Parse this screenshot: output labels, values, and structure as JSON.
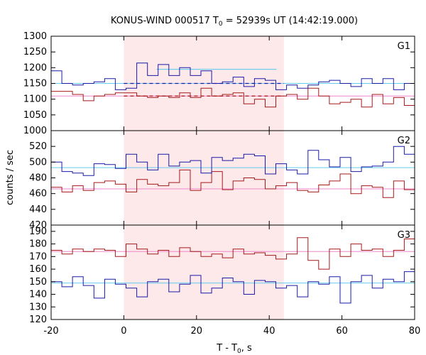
{
  "chart_data": {
    "type": "line",
    "title": "KONUS-WIND 000517 T₀ = 52939s UT (14:42:19.000)",
    "title_parts": {
      "prefix": "KONUS-WIND 000517 T",
      "sub": "0",
      "suffix": " = 52939s UT (14:42:19.000)"
    },
    "xlabel": "T - T₀, s",
    "xlabel_parts": {
      "prefix": "T - T",
      "sub": "0",
      "suffix": ", s"
    },
    "ylabel": "counts / sec",
    "xlim": [
      -20,
      80
    ],
    "x_ticks": [
      -20,
      0,
      20,
      40,
      60,
      80
    ],
    "grid": false,
    "colors": {
      "series_blue": "#1a1aa6",
      "series_red": "#a61a1a",
      "background_blue": "#66ccee",
      "background_red": "#ee88cc",
      "interval_fill": "#fde8ea"
    },
    "highlight_interval": [
      0,
      44.032
    ],
    "bin_width": 2.944,
    "bin_start": -20,
    "panels": [
      {
        "label": "G1",
        "ylim": [
          1000,
          1300
        ],
        "y_ticks": [
          1000,
          1050,
          1100,
          1150,
          1200,
          1250,
          1300
        ],
        "blue": [
          1190,
          1150,
          1145,
          1150,
          1155,
          1165,
          1130,
          1135,
          1215,
          1175,
          1210,
          1175,
          1200,
          1175,
          1190,
          1150,
          1155,
          1170,
          1140,
          1165,
          1160,
          1130,
          1145,
          1135,
          1145,
          1155,
          1160,
          1150,
          1140,
          1165,
          1150,
          1165,
          1130,
          1150
        ],
        "red": [
          1125,
          1125,
          1115,
          1095,
          1110,
          1115,
          1120,
          1120,
          1110,
          1105,
          1110,
          1105,
          1120,
          1105,
          1135,
          1110,
          1115,
          1120,
          1085,
          1100,
          1075,
          1110,
          1115,
          1100,
          1135,
          1110,
          1085,
          1090,
          1100,
          1075,
          1115,
          1085,
          1105,
          1080
        ],
        "blue_background": 1150,
        "red_background": 1110,
        "blue_interval_level": 1195,
        "red_interval_level": 1110
      },
      {
        "label": "G2",
        "ylim": [
          420,
          540
        ],
        "y_ticks": [
          420,
          440,
          460,
          480,
          500,
          520
        ],
        "blue": [
          500,
          488,
          486,
          483,
          498,
          497,
          492,
          510,
          500,
          490,
          510,
          495,
          500,
          502,
          486,
          506,
          502,
          505,
          510,
          508,
          485,
          498,
          490,
          485,
          515,
          503,
          494,
          506,
          488,
          494,
          495,
          500,
          520,
          510
        ],
        "red": [
          468,
          462,
          470,
          464,
          474,
          476,
          472,
          462,
          478,
          472,
          470,
          474,
          490,
          464,
          474,
          488,
          465,
          476,
          480,
          478,
          466,
          470,
          474,
          464,
          462,
          471,
          476,
          485,
          460,
          470,
          468,
          455,
          476,
          465
        ],
        "blue_background": 493,
        "red_background": 466
      },
      {
        "label": "G3",
        "ylim": [
          120,
          195
        ],
        "y_ticks": [
          120,
          130,
          140,
          150,
          160,
          170,
          180,
          190
        ],
        "blue": [
          150,
          146,
          154,
          147,
          137,
          152,
          148,
          145,
          138,
          150,
          152,
          142,
          148,
          155,
          141,
          145,
          153,
          150,
          140,
          151,
          150,
          145,
          147,
          138,
          150,
          148,
          154,
          133,
          150,
          155,
          145,
          152,
          150,
          158
        ],
        "red": [
          175,
          172,
          176,
          174,
          176,
          175,
          170,
          180,
          176,
          172,
          175,
          170,
          177,
          174,
          170,
          172,
          169,
          176,
          172,
          173,
          171,
          168,
          172,
          185,
          167,
          160,
          176,
          170,
          180,
          175,
          176,
          170,
          175,
          184
        ],
        "blue_background": 149,
        "red_background": 174
      }
    ]
  }
}
